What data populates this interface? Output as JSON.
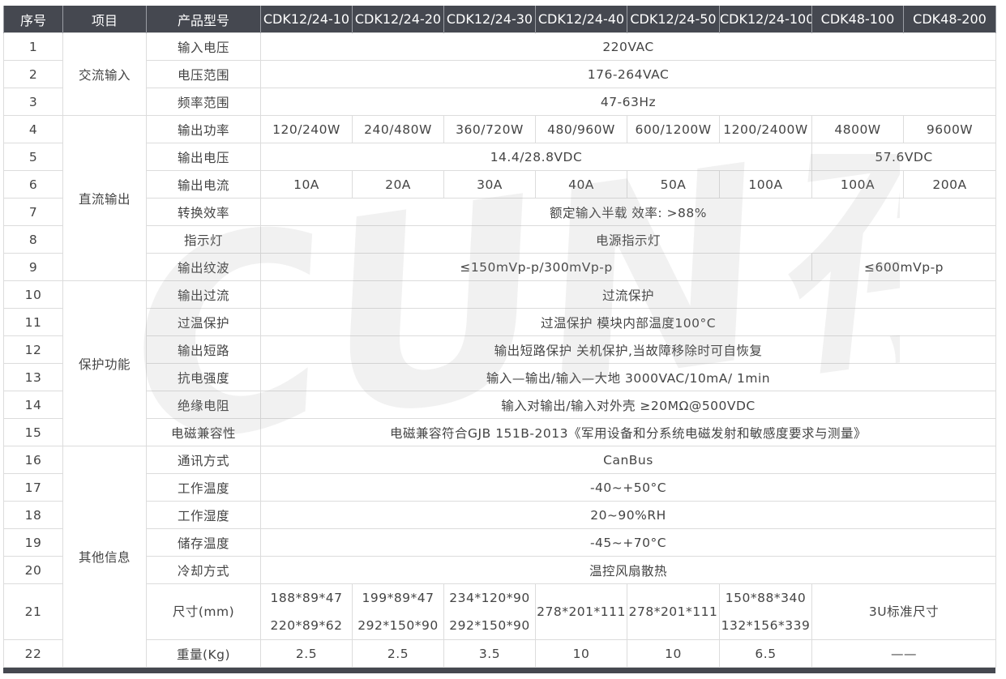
{
  "headers": [
    "序号",
    "项目",
    "产品型号",
    "CDK12/24-10",
    "CDK12/24-20",
    "CDK12/24-30",
    "CDK12/24-40",
    "CDK12/24-50",
    "CDK12/24-100",
    "CDK48-100",
    "CDK48-200"
  ],
  "groups": [
    {
      "label": "交流输入",
      "rows": 3
    },
    {
      "label": "直流输出",
      "rows": 6
    },
    {
      "label": "保护功能",
      "rows": 6
    },
    {
      "label": "其他信息",
      "rows": 7
    }
  ],
  "rows": [
    {
      "no": "1",
      "item": "输入电压",
      "cells": [
        {
          "text": "220VAC",
          "span": 8
        }
      ]
    },
    {
      "no": "2",
      "item": "电压范围",
      "cells": [
        {
          "text": "176-264VAC",
          "span": 8
        }
      ]
    },
    {
      "no": "3",
      "item": "频率范围",
      "cells": [
        {
          "text": "47-63Hz",
          "span": 8
        }
      ]
    },
    {
      "no": "4",
      "item": "输出功率",
      "cells": [
        {
          "text": "120/240W"
        },
        {
          "text": "240/480W"
        },
        {
          "text": "360/720W"
        },
        {
          "text": "480/960W"
        },
        {
          "text": "600/1200W"
        },
        {
          "text": "1200/2400W"
        },
        {
          "text": "4800W"
        },
        {
          "text": "9600W"
        }
      ]
    },
    {
      "no": "5",
      "item": "输出电压",
      "cells": [
        {
          "text": "14.4/28.8VDC",
          "span": 6
        },
        {
          "text": "57.6VDC",
          "span": 2
        }
      ]
    },
    {
      "no": "6",
      "item": "输出电流",
      "cells": [
        {
          "text": "10A"
        },
        {
          "text": "20A"
        },
        {
          "text": "30A"
        },
        {
          "text": "40A"
        },
        {
          "text": "50A"
        },
        {
          "text": "100A"
        },
        {
          "text": "100A"
        },
        {
          "text": "200A"
        }
      ]
    },
    {
      "no": "7",
      "item": "转换效率",
      "cells": [
        {
          "text": "额定输入半载  效率: >88%",
          "span": 8
        }
      ]
    },
    {
      "no": "8",
      "item": "指示灯",
      "cells": [
        {
          "text": "电源指示灯",
          "span": 8
        }
      ]
    },
    {
      "no": "9",
      "item": "输出纹波",
      "cells": [
        {
          "text": "≤150mVp-p/300mVp-p",
          "span": 6
        },
        {
          "text": "≤600mVp-p",
          "span": 2
        }
      ]
    },
    {
      "no": "10",
      "item": "输出过流",
      "cells": [
        {
          "text": "过流保护",
          "span": 8
        }
      ]
    },
    {
      "no": "11",
      "item": "过温保护",
      "cells": [
        {
          "text": "过温保护  模块内部温度100°C",
          "span": 8
        }
      ]
    },
    {
      "no": "12",
      "item": "输出短路",
      "cells": [
        {
          "text": "输出短路保护  关机保护,当故障移除时可自恢复",
          "span": 8
        }
      ]
    },
    {
      "no": "13",
      "item": "抗电强度",
      "cells": [
        {
          "text": "输入—输出/输入—大地 3000VAC/10mA/ 1min",
          "span": 8
        }
      ]
    },
    {
      "no": "14",
      "item": "绝缘电阻",
      "cells": [
        {
          "text": "输入对输出/输入对外壳 ≥20MΩ@500VDC",
          "span": 8
        }
      ]
    },
    {
      "no": "15",
      "item": "电磁兼容性",
      "cells": [
        {
          "text": "电磁兼容符合GJB 151B-2013《军用设备和分系统电磁发射和敏感度要求与测量》",
          "span": 8
        }
      ]
    },
    {
      "no": "16",
      "item": "通讯方式",
      "cells": [
        {
          "text": "CanBus",
          "span": 8
        }
      ]
    },
    {
      "no": "17",
      "item": "工作温度",
      "cells": [
        {
          "text": "-40~+50°C",
          "span": 8
        }
      ]
    },
    {
      "no": "18",
      "item": "工作湿度",
      "cells": [
        {
          "text": "20~90%RH",
          "span": 8
        }
      ]
    },
    {
      "no": "19",
      "item": "储存温度",
      "cells": [
        {
          "text": "-45~+70°C",
          "span": 8
        }
      ]
    },
    {
      "no": "20",
      "item": "冷却方式",
      "cells": [
        {
          "text": "温控风扇散热",
          "span": 8
        }
      ]
    },
    {
      "no": "21",
      "item": "尺寸(mm)",
      "tall": true,
      "cells": [
        {
          "lines": [
            "188*89*47",
            "220*89*62"
          ]
        },
        {
          "lines": [
            "199*89*47",
            "292*150*90"
          ]
        },
        {
          "lines": [
            "234*120*90",
            "292*150*90"
          ]
        },
        {
          "text": "278*201*111"
        },
        {
          "text": "278*201*111"
        },
        {
          "lines": [
            "150*88*340",
            "132*156*339"
          ]
        },
        {
          "text": "3U标准尺寸",
          "span": 2
        }
      ]
    },
    {
      "no": "22",
      "item": "重量(Kg)",
      "cells": [
        {
          "text": "2.5"
        },
        {
          "text": "2.5"
        },
        {
          "text": "3.5"
        },
        {
          "text": "10"
        },
        {
          "text": "10"
        },
        {
          "text": "6.5"
        },
        {
          "text": "——",
          "span": 2
        }
      ]
    }
  ],
  "watermark": {
    "text": "CUN 存能",
    "color": "#9a9a9a"
  },
  "colors": {
    "header_bg": "#454850",
    "header_text": "#ffffff",
    "border": "#dcdcdc",
    "text": "#444444"
  }
}
